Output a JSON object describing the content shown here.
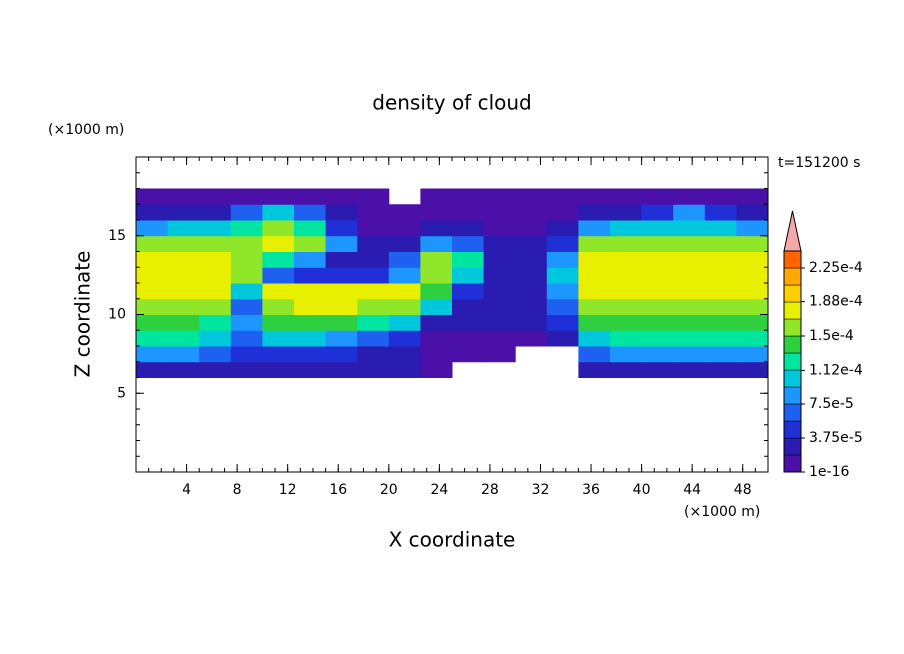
{
  "chart_data": {
    "type": "contour",
    "title": "density of cloud",
    "x_label": "X coordinate",
    "y_label": "Z coordinate",
    "x_unit": "(×1000 m)",
    "y_unit": "(×1000 m)",
    "annotation": "t=151200 s",
    "xlim": [
      0,
      50
    ],
    "ylim": [
      0,
      20
    ],
    "xticks": [
      4,
      8,
      12,
      16,
      20,
      24,
      28,
      32,
      36,
      40,
      44,
      48
    ],
    "yticks": [
      5,
      10,
      15
    ],
    "minor_tick_step": 1,
    "x": [
      1.25,
      3.75,
      6.25,
      8.75,
      11.25,
      13.75,
      16.25,
      18.75,
      21.25,
      23.75,
      26.25,
      28.75,
      31.25,
      33.75,
      36.25,
      38.75,
      41.25,
      43.75,
      46.25,
      48.75
    ],
    "y": [
      6.5,
      7.5,
      8.5,
      9.5,
      10.5,
      11.5,
      12.5,
      13.5,
      14.5,
      15.5,
      16.5,
      17.5
    ],
    "z": [
      [
        3e-05,
        3e-05,
        3e-05,
        2e-05,
        2e-05,
        2e-05,
        2e-05,
        2e-05,
        2e-05,
        1e-05,
        null,
        null,
        null,
        null,
        2e-05,
        3e-05,
        3e-05,
        3e-05,
        3e-05,
        3e-05
      ],
      [
        8e-05,
        8e-05,
        7e-05,
        4e-05,
        5e-05,
        5e-05,
        4e-05,
        3e-05,
        2e-05,
        1e-05,
        1e-05,
        1e-05,
        null,
        null,
        6e-05,
        9e-05,
        9e-05,
        9e-05,
        9e-05,
        9e-05
      ],
      [
        0.00012,
        0.00012,
        0.00011,
        6e-05,
        0.0001,
        0.0001,
        9e-05,
        7e-05,
        4e-05,
        1e-05,
        1e-05,
        1e-05,
        1e-05,
        2e-05,
        0.00011,
        0.00012,
        0.00012,
        0.00012,
        0.00012,
        0.00012
      ],
      [
        0.000135,
        0.000135,
        0.00013,
        9e-05,
        0.00014,
        0.000145,
        0.00014,
        0.00013,
        0.0001,
        3e-05,
        2e-05,
        2e-05,
        2e-05,
        4e-05,
        0.00014,
        0.00014,
        0.00014,
        0.000135,
        0.000135,
        0.000135
      ],
      [
        0.00016,
        0.000165,
        0.00015,
        6e-05,
        0.000165,
        0.00017,
        0.00017,
        0.000165,
        0.00015,
        0.0001,
        3e-05,
        2e-05,
        2e-05,
        6e-05,
        0.00016,
        0.000165,
        0.000165,
        0.00016,
        0.00016,
        0.00016
      ],
      [
        0.000175,
        0.00018,
        0.00017,
        0.0001,
        0.00017,
        0.00017,
        0.000175,
        0.00017,
        0.00017,
        0.00014,
        5e-05,
        2e-05,
        2e-05,
        8e-05,
        0.000175,
        0.00018,
        0.00018,
        0.00018,
        0.000175,
        0.000175
      ],
      [
        0.00018,
        0.000185,
        0.00018,
        0.00015,
        6e-05,
        5e-05,
        4e-05,
        4e-05,
        8e-05,
        0.00016,
        0.0001,
        2e-05,
        2e-05,
        0.0001,
        0.00018,
        0.000185,
        0.000185,
        0.000185,
        0.00018,
        0.00018
      ],
      [
        0.000175,
        0.00018,
        0.000175,
        0.00016,
        0.00012,
        8e-05,
        3e-05,
        3e-05,
        6e-05,
        0.00015,
        0.00012,
        2e-05,
        2e-05,
        8e-05,
        0.000175,
        0.00018,
        0.00018,
        0.000175,
        0.000175,
        0.000175
      ],
      [
        0.00016,
        0.000165,
        0.000165,
        0.000165,
        0.00017,
        0.00015,
        8e-05,
        2e-05,
        2e-05,
        8e-05,
        6e-05,
        2e-05,
        2e-05,
        4e-05,
        0.00015,
        0.00016,
        0.00016,
        0.000155,
        0.000155,
        0.000155
      ],
      [
        9e-05,
        0.0001,
        0.00011,
        0.00013,
        0.00015,
        0.00012,
        5e-05,
        1e-05,
        1e-05,
        2e-05,
        2e-05,
        1e-05,
        1e-05,
        2e-05,
        9e-05,
        0.0001,
        0.00011,
        0.00011,
        0.0001,
        9e-05
      ],
      [
        3e-05,
        3e-05,
        3e-05,
        6e-05,
        0.00011,
        6e-05,
        2e-05,
        1e-05,
        1e-05,
        1e-05,
        1e-05,
        1e-05,
        1e-05,
        1e-05,
        3e-05,
        3e-05,
        4e-05,
        8e-05,
        5e-05,
        3e-05
      ],
      [
        1e-05,
        1e-05,
        1e-05,
        1e-05,
        1e-05,
        1e-05,
        1e-05,
        1e-05,
        null,
        1e-05,
        1e-05,
        1e-05,
        1e-05,
        1e-05,
        1e-05,
        1e-05,
        1e-05,
        1e-05,
        1e-05,
        1e-05
      ]
    ],
    "levels": [
      1e-16,
      1.875e-05,
      3.75e-05,
      5.625e-05,
      7.5e-05,
      9.375e-05,
      0.0001125,
      0.00013125,
      0.00015,
      0.00016875,
      0.0001875,
      0.00020625,
      0.000225,
      0.00024375
    ],
    "colors": [
      "#4a10a8",
      "#2a1cb0",
      "#2030d8",
      "#1e60f0",
      "#1e96ff",
      "#00c8dc",
      "#00e6a0",
      "#2ed040",
      "#90e628",
      "#e8f000",
      "#ffd000",
      "#ffa800",
      "#ff6400"
    ],
    "extend_color": "#f4a8a8",
    "colorbar_ticks": [
      {
        "value": 1e-16,
        "label": "1e-16"
      },
      {
        "value": 3.75e-05,
        "label": "3.75e-5"
      },
      {
        "value": 7.5e-05,
        "label": "7.5e-5"
      },
      {
        "value": 0.000112,
        "label": "1.12e-4"
      },
      {
        "value": 0.00015,
        "label": "1.5e-4"
      },
      {
        "value": 0.000188,
        "label": "1.88e-4"
      },
      {
        "value": 0.000225,
        "label": "2.25e-4"
      }
    ]
  }
}
